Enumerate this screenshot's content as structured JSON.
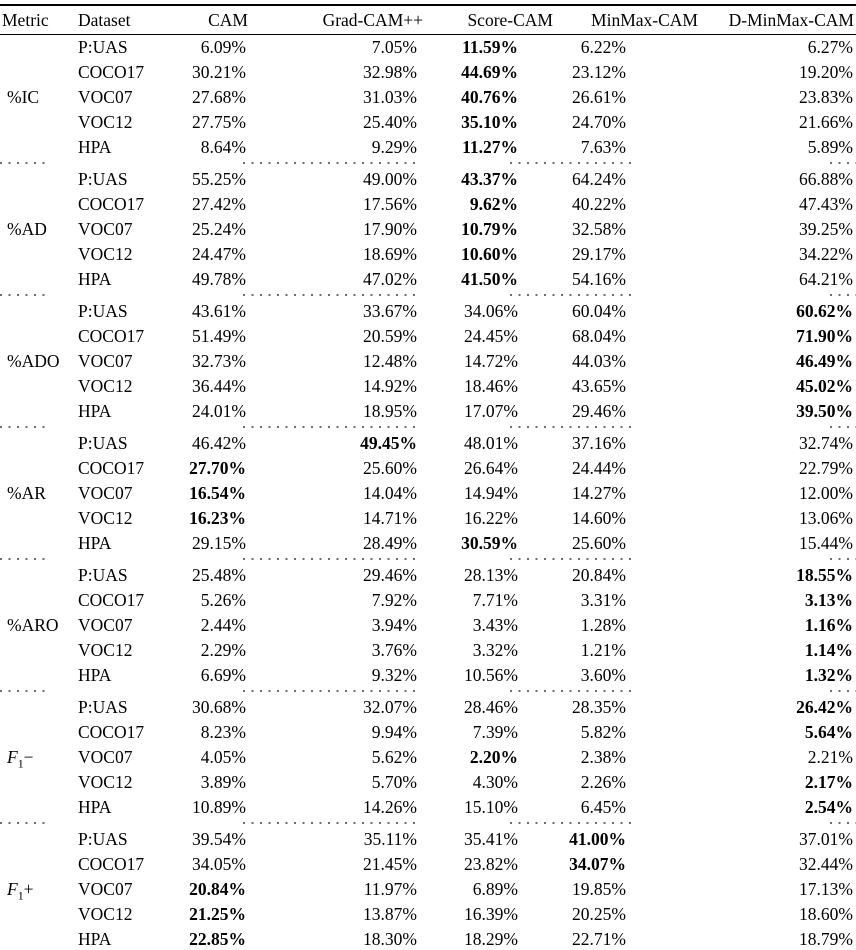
{
  "table": {
    "columns": [
      {
        "label": "Metric"
      },
      {
        "label": "Dataset"
      },
      {
        "label": "CAM"
      },
      {
        "label": "Grad-CAM++"
      },
      {
        "label": "Score-CAM"
      },
      {
        "label": "MinMax-CAM"
      },
      {
        "label": "D-MinMax-CAM"
      }
    ],
    "groups": [
      {
        "metric": {
          "label": "%IC"
        },
        "rows": [
          {
            "dataset": "P:UAS",
            "values": [
              "6.09%",
              "7.05%",
              "11.59%",
              "6.22%",
              "6.27%"
            ],
            "bold": 2
          },
          {
            "dataset": "COCO17",
            "values": [
              "30.21%",
              "32.98%",
              "44.69%",
              "23.12%",
              "19.20%"
            ],
            "bold": 2
          },
          {
            "dataset": "VOC07",
            "values": [
              "27.68%",
              "31.03%",
              "40.76%",
              "26.61%",
              "23.83%"
            ],
            "bold": 2
          },
          {
            "dataset": "VOC12",
            "values": [
              "27.75%",
              "25.40%",
              "35.10%",
              "24.70%",
              "21.66%"
            ],
            "bold": 2
          },
          {
            "dataset": "HPA",
            "values": [
              "8.64%",
              "9.29%",
              "11.27%",
              "7.63%",
              "5.89%"
            ],
            "bold": 2
          }
        ]
      },
      {
        "metric": {
          "label": "%AD"
        },
        "rows": [
          {
            "dataset": "P:UAS",
            "values": [
              "55.25%",
              "49.00%",
              "43.37%",
              "64.24%",
              "66.88%"
            ],
            "bold": 2
          },
          {
            "dataset": "COCO17",
            "values": [
              "27.42%",
              "17.56%",
              "9.62%",
              "40.22%",
              "47.43%"
            ],
            "bold": 2
          },
          {
            "dataset": "VOC07",
            "values": [
              "25.24%",
              "17.90%",
              "10.79%",
              "32.58%",
              "39.25%"
            ],
            "bold": 2
          },
          {
            "dataset": "VOC12",
            "values": [
              "24.47%",
              "18.69%",
              "10.60%",
              "29.17%",
              "34.22%"
            ],
            "bold": 2
          },
          {
            "dataset": "HPA",
            "values": [
              "49.78%",
              "47.02%",
              "41.50%",
              "54.16%",
              "64.21%"
            ],
            "bold": 2
          }
        ]
      },
      {
        "metric": {
          "label": "%ADO"
        },
        "rows": [
          {
            "dataset": "P:UAS",
            "values": [
              "43.61%",
              "33.67%",
              "34.06%",
              "60.04%",
              "60.62%"
            ],
            "bold": 4
          },
          {
            "dataset": "COCO17",
            "values": [
              "51.49%",
              "20.59%",
              "24.45%",
              "68.04%",
              "71.90%"
            ],
            "bold": 4
          },
          {
            "dataset": "VOC07",
            "values": [
              "32.73%",
              "12.48%",
              "14.72%",
              "44.03%",
              "46.49%"
            ],
            "bold": 4
          },
          {
            "dataset": "VOC12",
            "values": [
              "36.44%",
              "14.92%",
              "18.46%",
              "43.65%",
              "45.02%"
            ],
            "bold": 4
          },
          {
            "dataset": "HPA",
            "values": [
              "24.01%",
              "18.95%",
              "17.07%",
              "29.46%",
              "39.50%"
            ],
            "bold": 4
          }
        ]
      },
      {
        "metric": {
          "label": "%AR"
        },
        "rows": [
          {
            "dataset": "P:UAS",
            "values": [
              "46.42%",
              "49.45%",
              "48.01%",
              "37.16%",
              "32.74%"
            ],
            "bold": 1
          },
          {
            "dataset": "COCO17",
            "values": [
              "27.70%",
              "25.60%",
              "26.64%",
              "24.44%",
              "22.79%"
            ],
            "bold": 0
          },
          {
            "dataset": "VOC07",
            "values": [
              "16.54%",
              "14.04%",
              "14.94%",
              "14.27%",
              "12.00%"
            ],
            "bold": 0
          },
          {
            "dataset": "VOC12",
            "values": [
              "16.23%",
              "14.71%",
              "16.22%",
              "14.60%",
              "13.06%"
            ],
            "bold": 0
          },
          {
            "dataset": "HPA",
            "values": [
              "29.15%",
              "28.49%",
              "30.59%",
              "25.60%",
              "15.44%"
            ],
            "bold": 2
          }
        ]
      },
      {
        "metric": {
          "label": "%ARO"
        },
        "rows": [
          {
            "dataset": "P:UAS",
            "values": [
              "25.48%",
              "29.46%",
              "28.13%",
              "20.84%",
              "18.55%"
            ],
            "bold": 4
          },
          {
            "dataset": "COCO17",
            "values": [
              "5.26%",
              "7.92%",
              "7.71%",
              "3.31%",
              "3.13%"
            ],
            "bold": 4
          },
          {
            "dataset": "VOC07",
            "values": [
              "2.44%",
              "3.94%",
              "3.43%",
              "1.28%",
              "1.16%"
            ],
            "bold": 4
          },
          {
            "dataset": "VOC12",
            "values": [
              "2.29%",
              "3.76%",
              "3.32%",
              "1.21%",
              "1.14%"
            ],
            "bold": 4
          },
          {
            "dataset": "HPA",
            "values": [
              "6.69%",
              "9.32%",
              "10.56%",
              "3.60%",
              "1.32%"
            ],
            "bold": 4
          }
        ]
      },
      {
        "metric": {
          "base": "F",
          "sub": "1",
          "suffix": "−"
        },
        "rows": [
          {
            "dataset": "P:UAS",
            "values": [
              "30.68%",
              "32.07%",
              "28.46%",
              "28.35%",
              "26.42%"
            ],
            "bold": 4
          },
          {
            "dataset": "COCO17",
            "values": [
              "8.23%",
              "9.94%",
              "7.39%",
              "5.82%",
              "5.64%"
            ],
            "bold": 4
          },
          {
            "dataset": "VOC07",
            "values": [
              "4.05%",
              "5.62%",
              "2.20%",
              "2.38%",
              "2.21%"
            ],
            "bold": 2
          },
          {
            "dataset": "VOC12",
            "values": [
              "3.89%",
              "5.70%",
              "4.30%",
              "2.26%",
              "2.17%"
            ],
            "bold": 4
          },
          {
            "dataset": "HPA",
            "values": [
              "10.89%",
              "14.26%",
              "15.10%",
              "6.45%",
              "2.54%"
            ],
            "bold": 4
          }
        ]
      },
      {
        "metric": {
          "base": "F",
          "sub": "1",
          "suffix": "+"
        },
        "rows": [
          {
            "dataset": "P:UAS",
            "values": [
              "39.54%",
              "35.11%",
              "35.41%",
              "41.00%",
              "37.01%"
            ],
            "bold": 3
          },
          {
            "dataset": "COCO17",
            "values": [
              "34.05%",
              "21.45%",
              "23.82%",
              "34.07%",
              "32.44%"
            ],
            "bold": 3
          },
          {
            "dataset": "VOC07",
            "values": [
              "20.84%",
              "11.97%",
              "6.89%",
              "19.85%",
              "17.13%"
            ],
            "bold": 0
          },
          {
            "dataset": "VOC12",
            "values": [
              "21.25%",
              "13.87%",
              "16.39%",
              "20.25%",
              "18.60%"
            ],
            "bold": 0
          },
          {
            "dataset": "HPA",
            "values": [
              "22.85%",
              "18.30%",
              "18.29%",
              "22.71%",
              "18.79%"
            ],
            "bold": 0
          }
        ]
      }
    ]
  }
}
